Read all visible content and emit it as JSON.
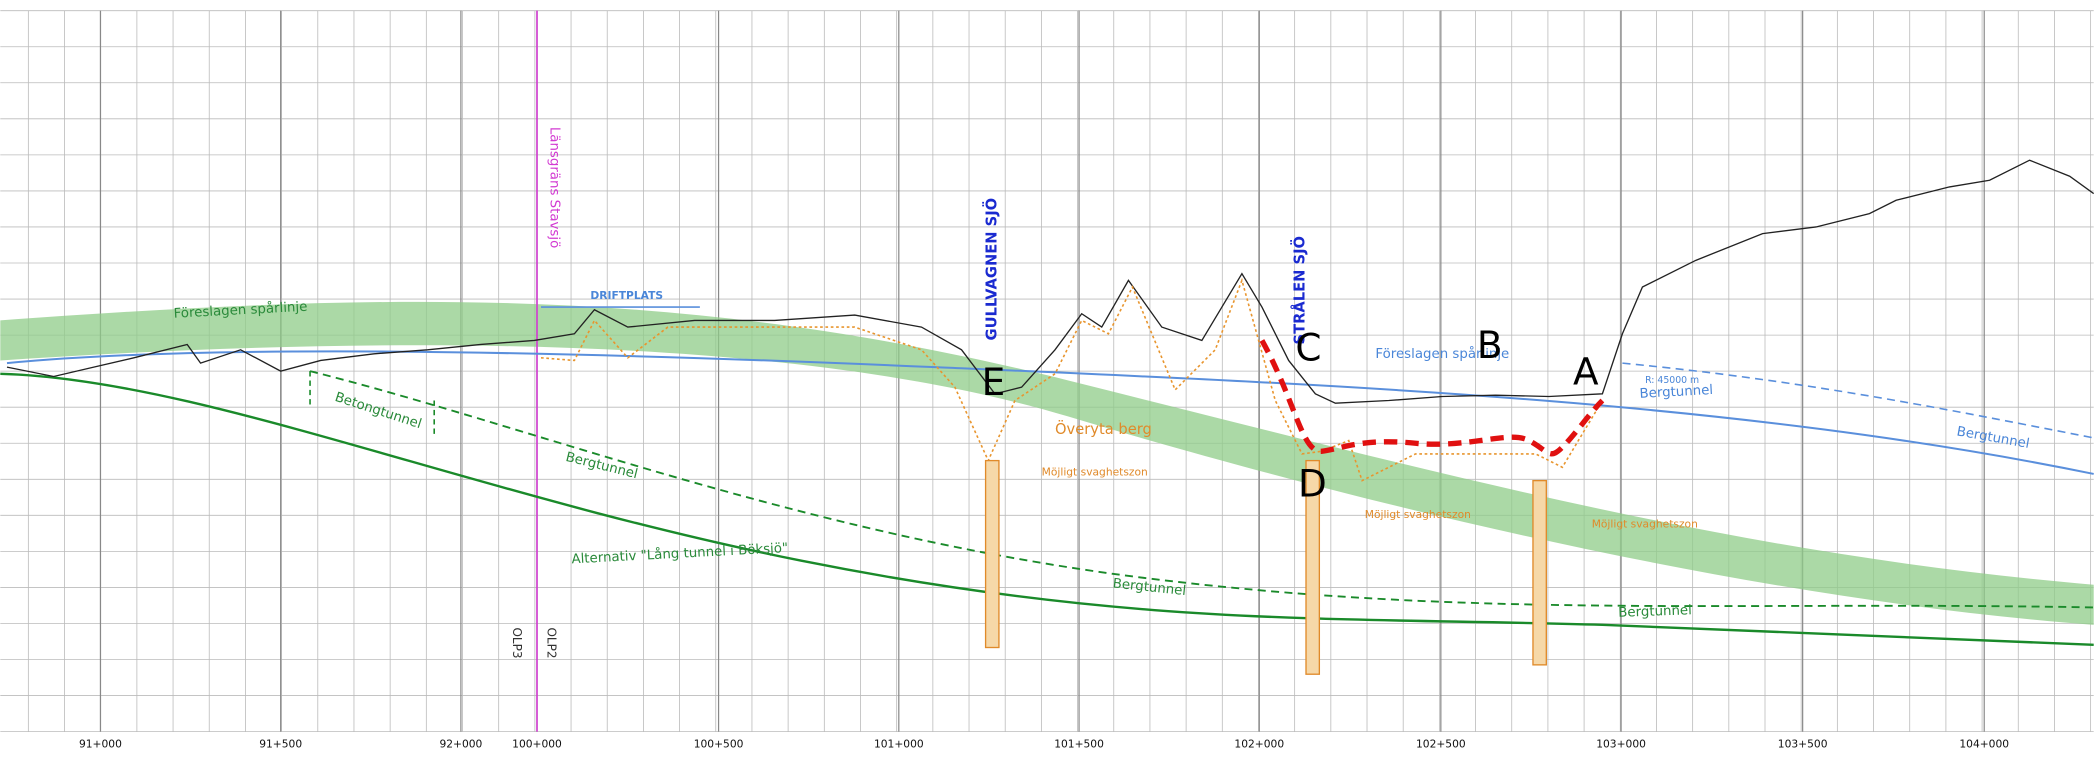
{
  "axis": {
    "chainages": [
      "91+000",
      "91+500",
      "92+000",
      "100+000",
      "100+500",
      "101+000",
      "101+500",
      "102+000",
      "102+500",
      "103+000",
      "103+500",
      "104+000"
    ]
  },
  "labels": {
    "proposed_track_left": "Föreslagen spårlinje",
    "proposed_track_right": "Föreslagen spårlinje",
    "concrete_tunnel": "Betongtunnel",
    "rock_tunnel_1": "Bergtunnel",
    "rock_tunnel_2": "Bergtunnel",
    "rock_tunnel_3": "Bergtunnel",
    "rock_tunnel_4": "Bergtunnel",
    "rock_tunnel_5": "Bergtunnel",
    "alternative": "Alternativ \"Lång tunnel i Böksjö\"",
    "rock_surface": "Överyta berg",
    "weakness_zone_1": "Möjligt svaghetszon",
    "weakness_zone_2": "Möjligt svaghetszon",
    "weakness_zone_3": "Möjligt svaghetszon",
    "county_border": "Länsgräns Stavsjö",
    "olp3": "OLP3",
    "olp2": "OLP2",
    "operating_site": "DRIFTPLATS",
    "lake_1": "GULLVAGNEN SJÖ",
    "lake_2": "STRÅLEN SJÖ",
    "radius": "R: 45000 m"
  },
  "markers": {
    "a": "A",
    "b": "B",
    "c": "C",
    "d": "D",
    "e": "E"
  }
}
